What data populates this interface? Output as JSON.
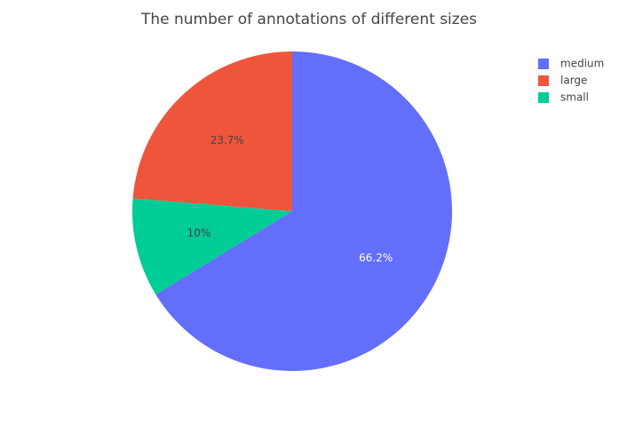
{
  "chart_data": {
    "type": "pie",
    "title": "The number of annotations of different sizes",
    "categories": [
      "medium",
      "large",
      "small"
    ],
    "values": [
      66.2,
      23.7,
      10
    ],
    "value_labels": [
      "66.2%",
      "23.7%",
      "10%"
    ],
    "colors": [
      "#636efa",
      "#ef553b",
      "#00cc96"
    ],
    "legend": "top-right"
  }
}
